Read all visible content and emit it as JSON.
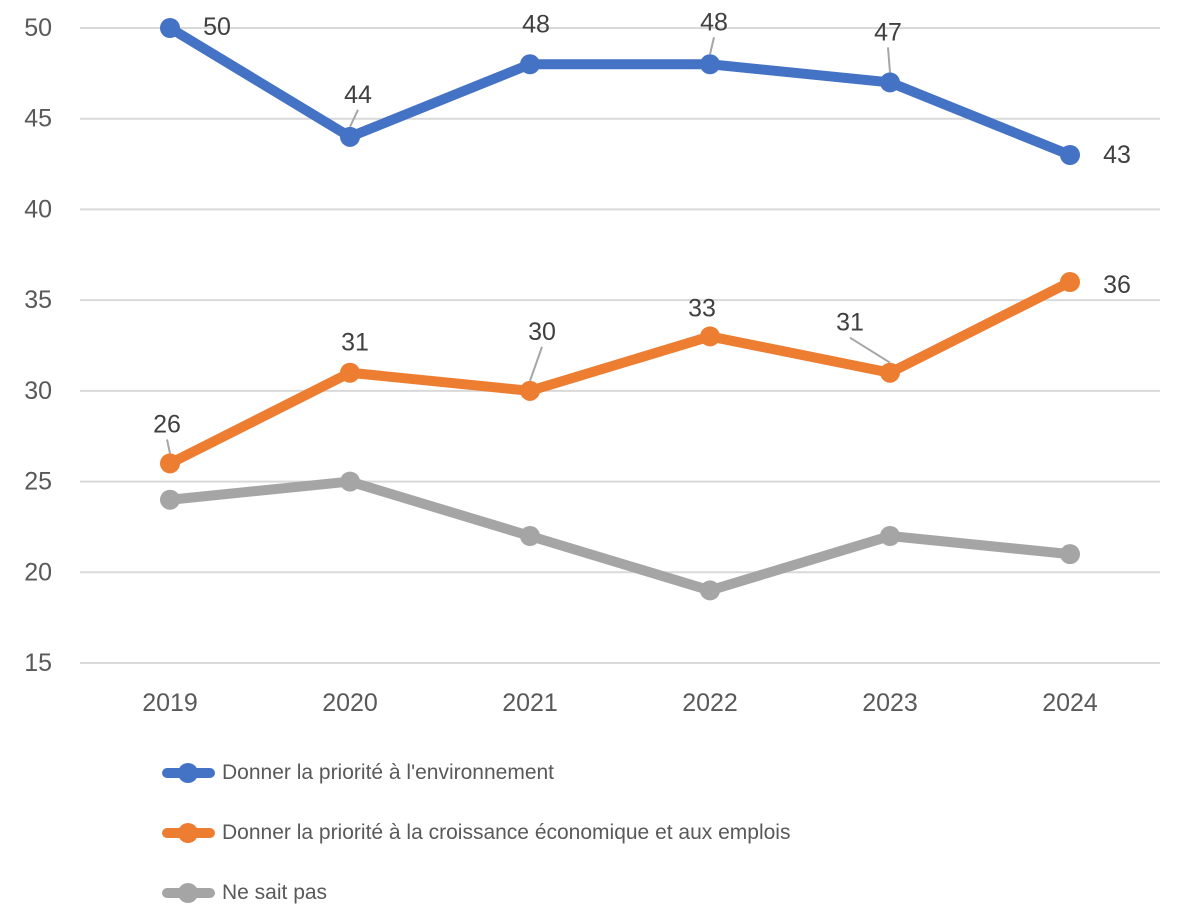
{
  "chart_data": {
    "type": "line",
    "title": "",
    "categories": [
      "2019",
      "2020",
      "2021",
      "2022",
      "2023",
      "2024"
    ],
    "series": [
      {
        "name": "Donner la priorité à l'environnement",
        "color": "#4472C4",
        "values": [
          50,
          44,
          48,
          48,
          47,
          43
        ],
        "data_labels": true
      },
      {
        "name": "Donner la priorité à la croissance économique et aux emplois",
        "color": "#ED7D31",
        "values": [
          26,
          31,
          30,
          33,
          31,
          36
        ],
        "data_labels": true
      },
      {
        "name": "Ne sait pas",
        "color": "#A5A5A5",
        "values": [
          24,
          25,
          22,
          19,
          22,
          21
        ],
        "data_labels": false
      }
    ],
    "xlabel": "",
    "ylabel": "",
    "ylim": [
      15,
      50
    ],
    "yticks": [
      15,
      20,
      25,
      30,
      35,
      40,
      45,
      50
    ],
    "grid": true,
    "legend_position": "bottom-left"
  },
  "colors": {
    "background": "#FFFFFF",
    "gridline": "#D9D9D9",
    "axis_text": "#595959",
    "data_label_text": "#404040",
    "leader_line": "#A6A6A6",
    "legend_text": "#595959"
  }
}
